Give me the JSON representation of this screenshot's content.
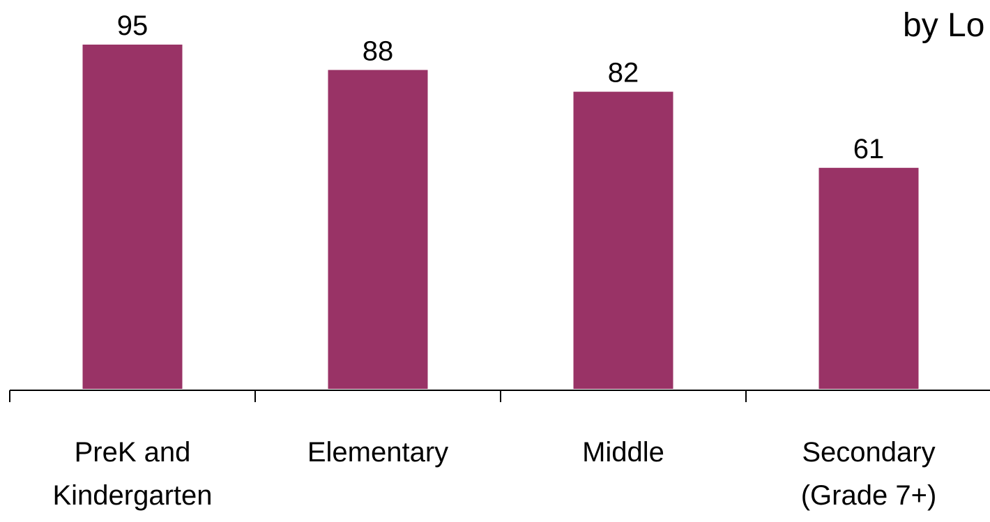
{
  "chart_data": {
    "type": "bar",
    "title": "by Lo",
    "categories": [
      [
        "PreK and",
        "Kindergarten"
      ],
      [
        "Elementary"
      ],
      [
        "Middle"
      ],
      [
        "Secondary",
        "(Grade 7+)"
      ]
    ],
    "values": [
      95,
      88,
      82,
      61
    ],
    "ylim": [
      0,
      100
    ],
    "grid": false,
    "bar_color": "#993366",
    "axis_color": "#000000"
  }
}
